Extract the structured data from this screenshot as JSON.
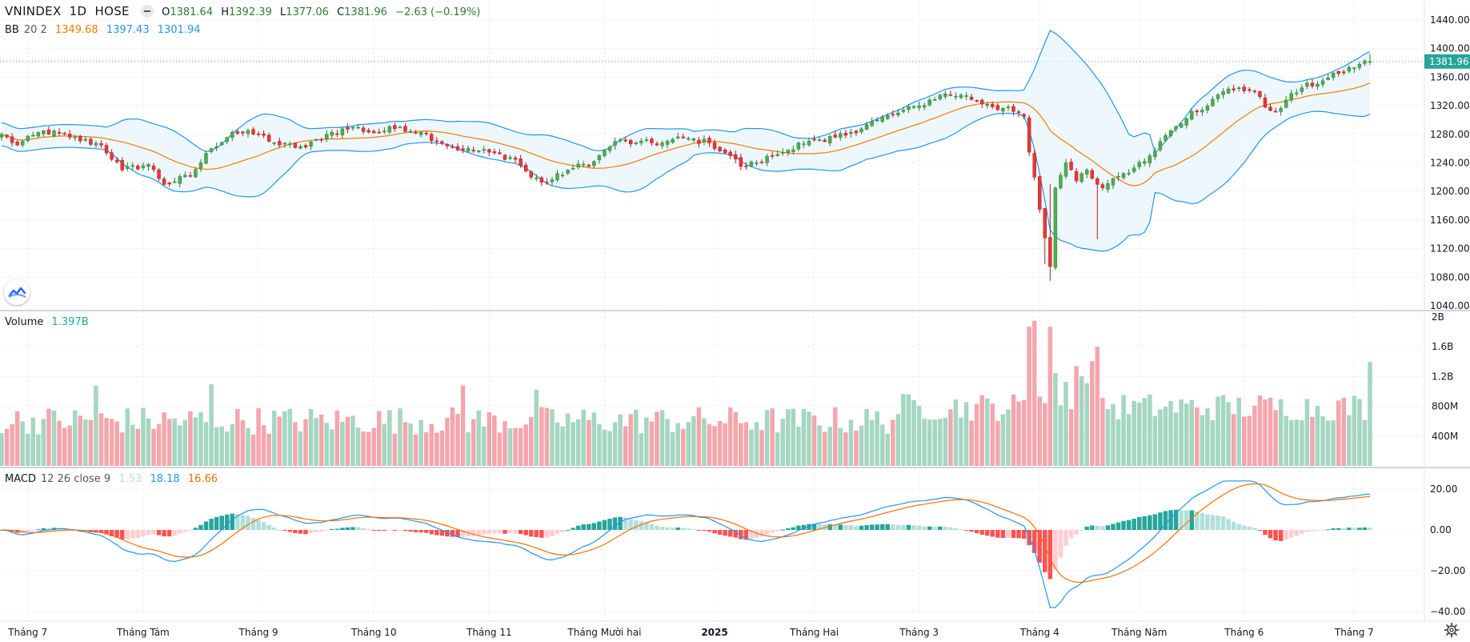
{
  "header": {
    "symbol": "VNINDEX",
    "interval": "1D",
    "exchange": "HOSE",
    "open_label": "O",
    "open": "1381.64",
    "high_label": "H",
    "high": "1392.39",
    "low_label": "L",
    "low": "1377.06",
    "close_label": "C",
    "close": "1381.96",
    "change": "−2.63 (−0.19%)"
  },
  "bb_legend": {
    "name": "BB",
    "params": "20 2",
    "basis": "1349.68",
    "upper": "1397.43",
    "lower": "1301.94"
  },
  "volume_legend": {
    "name": "Volume",
    "value": "1.397B"
  },
  "macd_legend": {
    "name": "MACD",
    "params": "12 26 close 9",
    "hist": "1.53",
    "macd": "18.18",
    "signal": "16.66"
  },
  "colors": {
    "up": "#26a69a",
    "down": "#ef5350",
    "candle_up": "#4caf50",
    "candle_down": "#e53935",
    "bb_band": "#2196f3",
    "bb_basis": "#f57c00",
    "bb_fill": "#e3f2fd",
    "macd_line": "#2196f3",
    "signal_line": "#ff6d00",
    "price_tag": "#26a69a",
    "grid": "#e6e8ec"
  },
  "icons": {
    "logo": "tradingview-logo-icon",
    "settings": "gear-icon"
  },
  "chart_data": [
    {
      "type": "candlestick",
      "title": "VNINDEX 1D HOSE",
      "y_axis_ticks": [
        1040,
        1080,
        1120,
        1160,
        1200,
        1240,
        1280,
        1320,
        1360,
        1400,
        1440
      ],
      "ylim": [
        1040,
        1440
      ],
      "last_price_tag": "1381.96",
      "x_tick_labels": [
        "Tháng 7",
        "Tháng Tám",
        "Tháng 9",
        "Tháng 10",
        "Tháng 11",
        "Tháng Mười hai",
        "2025",
        "Tháng Hai",
        "Tháng 3",
        "Tháng 4",
        "Tháng Năm",
        "Tháng 6",
        "Tháng 7"
      ],
      "x_tick_index": [
        5,
        27,
        49,
        71,
        93,
        115,
        136,
        155,
        175,
        198,
        217,
        237,
        258
      ],
      "close_key_points": [
        [
          0,
          1280
        ],
        [
          3,
          1265
        ],
        [
          8,
          1285
        ],
        [
          13,
          1276
        ],
        [
          19,
          1265
        ],
        [
          23,
          1230
        ],
        [
          28,
          1238
        ],
        [
          31,
          1210
        ],
        [
          36,
          1222
        ],
        [
          40,
          1260
        ],
        [
          44,
          1283
        ],
        [
          49,
          1280
        ],
        [
          53,
          1265
        ],
        [
          58,
          1262
        ],
        [
          62,
          1280
        ],
        [
          67,
          1290
        ],
        [
          71,
          1282
        ],
        [
          76,
          1290
        ],
        [
          80,
          1283
        ],
        [
          84,
          1268
        ],
        [
          88,
          1258
        ],
        [
          93,
          1255
        ],
        [
          98,
          1245
        ],
        [
          101,
          1220
        ],
        [
          104,
          1212
        ],
        [
          108,
          1230
        ],
        [
          113,
          1242
        ],
        [
          117,
          1270
        ],
        [
          121,
          1268
        ],
        [
          126,
          1268
        ],
        [
          130,
          1275
        ],
        [
          135,
          1268
        ],
        [
          139,
          1250
        ],
        [
          141,
          1235
        ],
        [
          144,
          1240
        ],
        [
          147,
          1250
        ],
        [
          150,
          1258
        ],
        [
          152,
          1268
        ],
        [
          157,
          1270
        ],
        [
          162,
          1283
        ],
        [
          167,
          1300
        ],
        [
          171,
          1310
        ],
        [
          175,
          1320
        ],
        [
          179,
          1335
        ],
        [
          183,
          1335
        ],
        [
          188,
          1322
        ],
        [
          193,
          1312
        ],
        [
          195,
          1305
        ],
        [
          196,
          1255
        ],
        [
          197,
          1220
        ],
        [
          198,
          1175
        ],
        [
          199,
          1135
        ],
        [
          200,
          1095
        ],
        [
          201,
          1205
        ],
        [
          203,
          1240
        ],
        [
          205,
          1215
        ],
        [
          207,
          1230
        ],
        [
          209,
          1210
        ],
        [
          210,
          1205
        ],
        [
          212,
          1218
        ],
        [
          214,
          1225
        ],
        [
          216,
          1233
        ],
        [
          218,
          1242
        ],
        [
          221,
          1270
        ],
        [
          223,
          1285
        ],
        [
          227,
          1312
        ],
        [
          230,
          1320
        ],
        [
          233,
          1340
        ],
        [
          236,
          1345
        ],
        [
          239,
          1340
        ],
        [
          241,
          1318
        ],
        [
          243,
          1312
        ],
        [
          245,
          1328
        ],
        [
          248,
          1345
        ],
        [
          252,
          1355
        ],
        [
          255,
          1365
        ],
        [
          259,
          1378
        ],
        [
          261,
          1381.96
        ]
      ],
      "bollinger": {
        "period": 20,
        "stddev": 2,
        "basis_last": 1349.68,
        "upper_last": 1397.43,
        "lower_last": 1301.94
      }
    },
    {
      "type": "bar",
      "title": "Volume",
      "y_axis_labels": [
        "400M",
        "800M",
        "1.2B",
        "1.6B",
        "2B"
      ],
      "y_axis_values": [
        400,
        800,
        1200,
        1600,
        2000
      ],
      "ylim": [
        0,
        2000
      ],
      "units": "millions",
      "last_value": "1.397B"
    },
    {
      "type": "line+histogram",
      "title": "MACD",
      "y_axis_labels": [
        "20.00",
        "0.00",
        "−20.00",
        "−40.00"
      ],
      "y_axis_values": [
        20,
        0,
        -20,
        -40
      ],
      "ylim": [
        -40,
        25
      ],
      "fast": 12,
      "slow": 26,
      "signal": 9,
      "last_values": {
        "histogram": 1.53,
        "macd": 18.18,
        "signal": 16.66
      }
    }
  ]
}
